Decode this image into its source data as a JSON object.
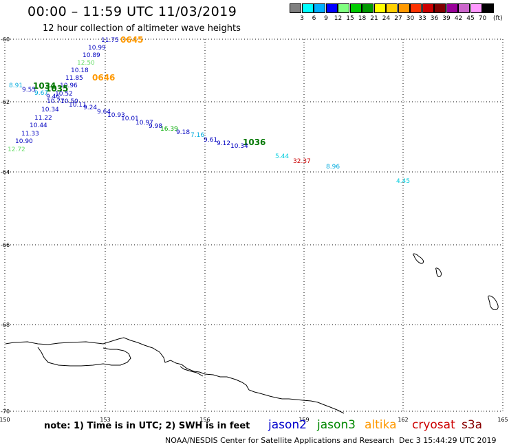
{
  "header": {
    "title": "00:00 – 11:59 UTC 11/03/2019",
    "subtitle": "12 hour collection of altimeter wave heights"
  },
  "colorbar": {
    "unit": "(ft)",
    "colors": [
      "#808080",
      "#00ffff",
      "#00b0ff",
      "#0000ff",
      "#80ff80",
      "#00cc00",
      "#009900",
      "#ffff00",
      "#ffd000",
      "#ff9900",
      "#ff3300",
      "#cc0000",
      "#800000",
      "#990099",
      "#cc66cc",
      "#ff99ff",
      "#000000"
    ],
    "labels": [
      "3",
      "6",
      "9",
      "12",
      "15",
      "18",
      "21",
      "24",
      "27",
      "30",
      "33",
      "36",
      "39",
      "42",
      "45",
      "70"
    ]
  },
  "axes": {
    "lat_labels": [
      "-60",
      "-62",
      "-64",
      "-66",
      "-68",
      "-70"
    ],
    "lon_labels": [
      "150",
      "153",
      "156",
      "159",
      "162",
      "165"
    ]
  },
  "observations": [
    {
      "text": "11.75",
      "color": "#0000c0"
    },
    {
      "text": "0645",
      "color": "#ff9900"
    },
    {
      "text": "10.99",
      "color": "#0000c0"
    },
    {
      "text": "10.89",
      "color": "#0000c0"
    },
    {
      "text": "12.50",
      "color": "#66dd66"
    },
    {
      "text": "10.18",
      "color": "#0000c0"
    },
    {
      "text": "11.85",
      "color": "#0000c0"
    },
    {
      "text": "0646",
      "color": "#ff9900"
    },
    {
      "text": "8.91",
      "color": "#00aadd"
    },
    {
      "text": "1034",
      "color": "#007700"
    },
    {
      "text": "10.96",
      "color": "#0000c0"
    },
    {
      "text": "9.55",
      "color": "#0000c0"
    },
    {
      "text": "1035",
      "color": "#007700"
    },
    {
      "text": "9.67",
      "color": "#00aadd"
    },
    {
      "text": "10.52",
      "color": "#0000c0"
    },
    {
      "text": "9.46",
      "color": "#0000c0"
    },
    {
      "text": "10.77",
      "color": "#0000c0"
    },
    {
      "text": "10.50",
      "color": "#0000c0"
    },
    {
      "text": "10.11",
      "color": "#0000c0"
    },
    {
      "text": "9.24",
      "color": "#0000c0"
    },
    {
      "text": "10.34",
      "color": "#0000c0"
    },
    {
      "text": "9.64",
      "color": "#0000c0"
    },
    {
      "text": "10.93",
      "color": "#0000c0"
    },
    {
      "text": "11.22",
      "color": "#0000c0"
    },
    {
      "text": "10.01",
      "color": "#0000c0"
    },
    {
      "text": "10.97",
      "color": "#0000c0"
    },
    {
      "text": "10.44",
      "color": "#0000c0"
    },
    {
      "text": "9.98",
      "color": "#0000c0"
    },
    {
      "text": "16.39",
      "color": "#00aa00"
    },
    {
      "text": "9.18",
      "color": "#0000c0"
    },
    {
      "text": "11.33",
      "color": "#0000c0"
    },
    {
      "text": "7.16",
      "color": "#00aadd"
    },
    {
      "text": "9.61",
      "color": "#0000c0"
    },
    {
      "text": "10.90",
      "color": "#0000c0"
    },
    {
      "text": "1036",
      "color": "#007700"
    },
    {
      "text": "9.12",
      "color": "#0000c0"
    },
    {
      "text": "12.72",
      "color": "#66dd66"
    },
    {
      "text": "10.34",
      "color": "#0000c0"
    },
    {
      "text": "5.44",
      "color": "#00ccdd"
    },
    {
      "text": "32.37",
      "color": "#cc0000"
    },
    {
      "text": "8.96",
      "color": "#00aadd"
    },
    {
      "text": "4.45",
      "color": "#00ccdd"
    }
  ],
  "note": "note: 1) Time is in UTC; 2) SWH is in feet",
  "legend": [
    {
      "text": "jason2",
      "color": "#0000cc"
    },
    {
      "text": "jason3",
      "color": "#008800"
    },
    {
      "text": "altika",
      "color": "#ff9900"
    },
    {
      "text": "cryosat",
      "color": "#cc0000"
    },
    {
      "text": "s3a",
      "color": "#880000"
    }
  ],
  "footer": {
    "agency": "NOAA/NESDIS Center for Satellite Applications and Research",
    "timestamp": "Dec  3 15:44:29 UTC 2019"
  }
}
